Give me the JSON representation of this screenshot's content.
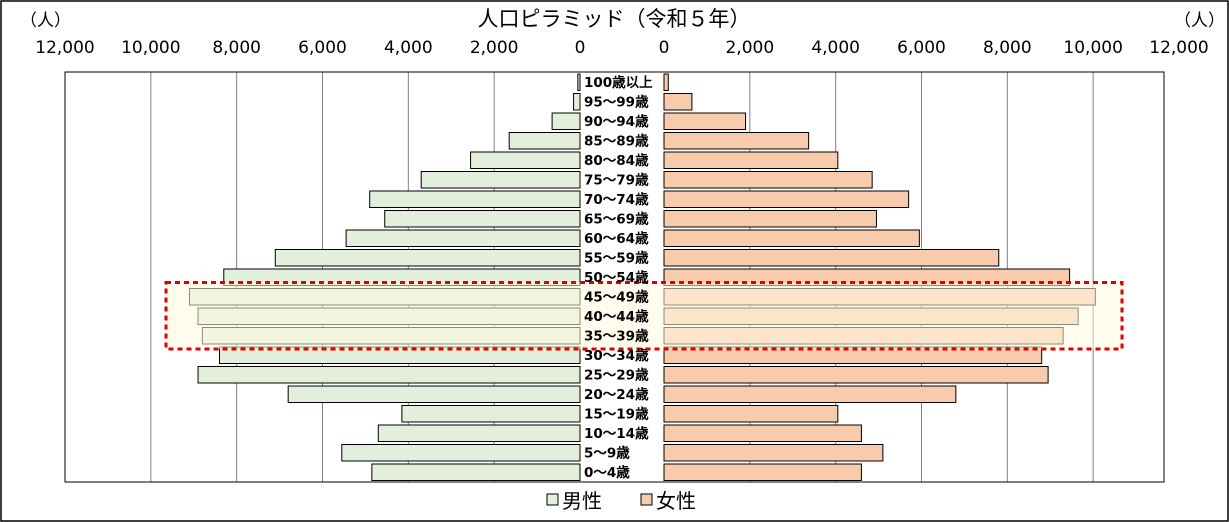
{
  "chart_data": {
    "type": "bar",
    "title": "人口ピラミッド（令和５年）",
    "unit_label_left": "（人）",
    "unit_label_right": "（人）",
    "x_ticks_male": [
      "12,000",
      "10,000",
      "8,000",
      "6,000",
      "4,000",
      "2,000",
      "0"
    ],
    "x_ticks_female": [
      "0",
      "2,000",
      "4,000",
      "6,000",
      "8,000",
      "10,000",
      "12,000"
    ],
    "tick_values": [
      12000,
      10000,
      8000,
      6000,
      4000,
      2000,
      0
    ],
    "xlim": [
      0,
      12000
    ],
    "categories": [
      "100歳以上",
      "95～99歳",
      "90～94歳",
      "85～89歳",
      "80～84歳",
      "75～79歳",
      "70～74歳",
      "65～69歳",
      "60～64歳",
      "55～59歳",
      "50～54歳",
      "45～49歳",
      "40～44歳",
      "35～39歳",
      "30～34歳",
      "25～29歳",
      "20～24歳",
      "15～19歳",
      "10～14歳",
      "5～9歳",
      "0～4歳"
    ],
    "series": [
      {
        "name": "男性",
        "color": "#e2efda",
        "values": [
          50,
          150,
          650,
          1650,
          2550,
          3700,
          4900,
          4550,
          5450,
          7100,
          8300,
          9100,
          8900,
          8800,
          8400,
          8900,
          6800,
          4150,
          4700,
          5550,
          4850
        ]
      },
      {
        "name": "女性",
        "color": "#f8cbad",
        "values": [
          100,
          650,
          1900,
          3370,
          4050,
          4850,
          5700,
          4950,
          5950,
          7800,
          9450,
          10050,
          9650,
          9300,
          8800,
          8950,
          6800,
          4050,
          4600,
          5100,
          4600
        ]
      }
    ],
    "highlighted_categories": [
      "45～49歳",
      "40～44歳",
      "35～39歳"
    ],
    "grid": true,
    "legend_position": "bottom"
  }
}
